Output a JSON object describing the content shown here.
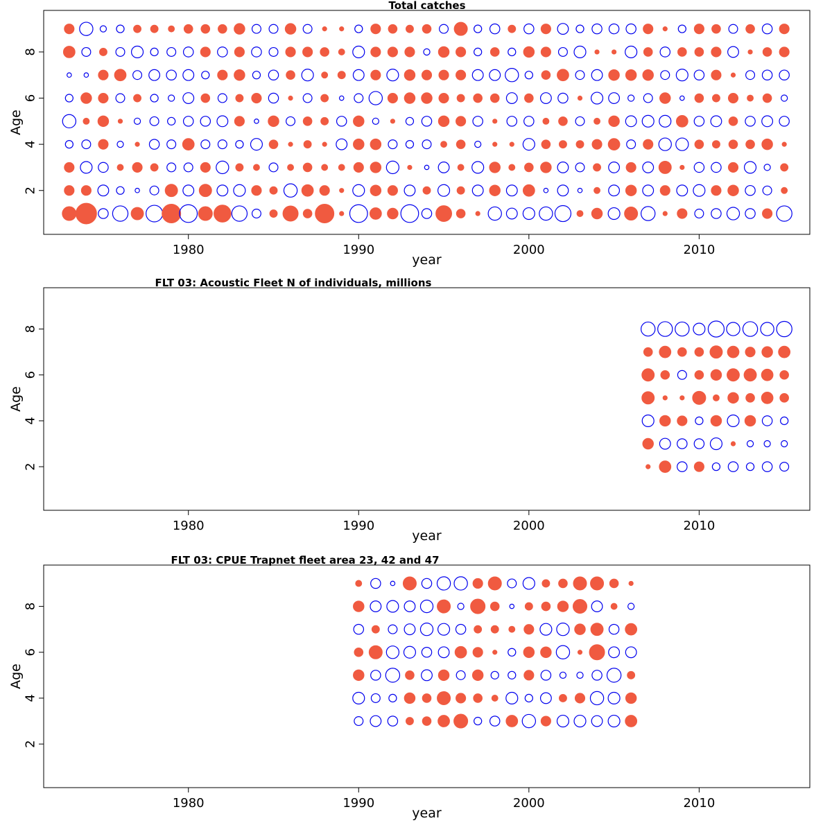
{
  "chart_data": [
    {
      "type": "scatter",
      "subtype": "bubble-residuals",
      "title": "Total catches",
      "xlabel": "year",
      "ylabel": "Age",
      "xlim": [
        1971.5,
        2016.5
      ],
      "ylim": [
        0.1,
        9.8
      ],
      "xticks": [
        1980,
        1990,
        2000,
        2010
      ],
      "yticks": [
        2,
        4,
        6,
        8
      ],
      "ages": [
        1,
        2,
        3,
        4,
        5,
        6,
        7,
        8,
        9
      ],
      "years": [
        1973,
        1974,
        1975,
        1976,
        1977,
        1978,
        1979,
        1980,
        1981,
        1982,
        1983,
        1984,
        1985,
        1986,
        1987,
        1988,
        1989,
        1990,
        1991,
        1992,
        1993,
        1994,
        1995,
        1996,
        1997,
        1998,
        1999,
        2000,
        2001,
        2002,
        2003,
        2004,
        2005,
        2006,
        2007,
        2008,
        2009,
        2010,
        2011,
        2012,
        2013,
        2014,
        2015
      ],
      "residual_range": [
        -2.5,
        2.5
      ],
      "colors": {
        "positive": "#f05a40",
        "negative": "#0000ee"
      },
      "residuals_by_age": [
        [
          1.0,
          2.2,
          -0.5,
          -1.2,
          0.8,
          -1.4,
          1.8,
          -1.6,
          1.0,
          1.5,
          -1.2,
          -0.4,
          0.3,
          1.2,
          0.4,
          1.8,
          0.1,
          -1.6,
          0.7,
          0.6,
          -1.6,
          -0.5,
          1.3,
          0.4,
          0.1,
          -0.9,
          -0.6,
          -0.7,
          -0.9,
          -1.3,
          0.2,
          0.6,
          -0.7,
          0.9,
          -1.0,
          0.1,
          0.5,
          -0.4,
          -0.5,
          -0.8,
          -0.5,
          0.5,
          -1.2
        ],
        [
          0.5,
          0.5,
          -0.6,
          -0.3,
          -0.1,
          -0.4,
          0.8,
          -0.6,
          0.8,
          -0.6,
          -0.7,
          0.5,
          0.3,
          -0.9,
          0.7,
          0.5,
          0.1,
          -0.7,
          0.6,
          0.5,
          -0.6,
          0.3,
          -0.7,
          0.3,
          -0.6,
          0.6,
          -0.6,
          0.7,
          -0.1,
          -0.6,
          -0.1,
          0.2,
          -0.6,
          0.6,
          -0.6,
          0.5,
          -0.6,
          -0.7,
          0.5,
          0.6,
          -0.5,
          -0.4,
          0.2
        ],
        [
          0.5,
          -0.7,
          -0.5,
          0.2,
          0.5,
          0.3,
          -0.4,
          -0.4,
          0.5,
          -0.8,
          0.3,
          0.2,
          -0.4,
          0.2,
          0.4,
          0.2,
          0.2,
          0.5,
          0.6,
          -0.8,
          0.1,
          -0.1,
          -0.6,
          0.2,
          -0.7,
          0.6,
          0.2,
          0.4,
          0.6,
          -0.6,
          -0.4,
          0.3,
          -0.6,
          0.5,
          -0.6,
          0.8,
          0.1,
          -0.5,
          -0.5,
          0.5,
          -0.7,
          -0.2,
          0.3
        ],
        [
          -0.3,
          -0.4,
          0.5,
          -0.2,
          0.1,
          -0.5,
          -0.4,
          0.7,
          -0.4,
          -0.4,
          -0.3,
          -0.7,
          0.4,
          0.1,
          0.3,
          0.1,
          -0.6,
          0.6,
          0.6,
          -0.4,
          -0.3,
          -0.4,
          0.2,
          0.4,
          -0.2,
          0.1,
          0.1,
          -0.7,
          0.4,
          0.3,
          0.3,
          0.5,
          0.7,
          -0.4,
          0.5,
          -0.8,
          -0.8,
          0.4,
          0.3,
          0.4,
          0.4,
          0.6,
          0.1
        ],
        [
          -0.9,
          0.2,
          0.6,
          0.1,
          -0.2,
          -0.4,
          -0.3,
          -0.5,
          -0.5,
          -0.6,
          0.5,
          -0.1,
          0.6,
          -0.4,
          0.4,
          0.3,
          -0.5,
          0.6,
          -0.2,
          0.1,
          -0.3,
          -0.5,
          0.6,
          0.5,
          -0.5,
          0.1,
          -0.5,
          -0.5,
          0.2,
          0.4,
          -0.4,
          0.2,
          0.6,
          -0.6,
          -0.7,
          -0.7,
          0.7,
          -0.5,
          -0.6,
          0.4,
          -0.5,
          -0.6,
          -0.5
        ],
        [
          -0.3,
          0.6,
          0.5,
          -0.4,
          0.3,
          -0.3,
          -0.2,
          -0.6,
          0.4,
          -0.4,
          0.3,
          0.5,
          -0.5,
          0.1,
          -0.4,
          0.3,
          -0.1,
          -0.4,
          -0.9,
          0.5,
          0.6,
          0.6,
          0.5,
          0.3,
          0.4,
          0.4,
          -0.6,
          0.4,
          -0.6,
          -0.5,
          0.1,
          -0.7,
          -0.6,
          -0.2,
          -0.4,
          0.6,
          -0.1,
          0.4,
          0.3,
          0.5,
          0.2,
          0.4,
          -0.2
        ],
        [
          -0.1,
          -0.1,
          0.5,
          0.7,
          -0.4,
          -0.6,
          -0.5,
          -0.6,
          -0.3,
          0.5,
          0.6,
          -0.3,
          -0.5,
          0.4,
          -0.7,
          0.2,
          0.3,
          -0.6,
          0.5,
          -0.7,
          0.6,
          0.5,
          0.5,
          0.5,
          -0.6,
          -0.6,
          -0.9,
          -0.3,
          0.4,
          0.7,
          -0.4,
          -0.6,
          0.6,
          0.6,
          0.6,
          -0.4,
          -0.7,
          -0.5,
          0.5,
          0.1,
          -0.4,
          -0.5,
          -0.5
        ],
        [
          0.7,
          -0.4,
          0.3,
          -0.4,
          -0.7,
          -0.3,
          -0.4,
          -0.5,
          0.5,
          -0.5,
          0.5,
          -0.5,
          -0.4,
          0.5,
          0.5,
          0.4,
          0.2,
          -0.7,
          0.5,
          0.5,
          0.5,
          -0.2,
          0.6,
          0.5,
          -0.3,
          0.4,
          -0.3,
          0.6,
          0.5,
          -0.4,
          -0.7,
          0.1,
          0.1,
          -0.7,
          0.4,
          -0.5,
          0.4,
          0.4,
          0.5,
          -0.6,
          0.1,
          0.4,
          0.5
        ],
        [
          0.5,
          -0.9,
          -0.2,
          -0.3,
          0.3,
          0.3,
          0.2,
          0.4,
          0.4,
          0.4,
          0.6,
          -0.4,
          -0.4,
          0.6,
          -0.4,
          0.1,
          0.1,
          -0.3,
          0.5,
          0.4,
          0.3,
          0.4,
          -0.4,
          0.9,
          -0.3,
          -0.5,
          0.3,
          -0.5,
          0.5,
          -0.6,
          -0.3,
          -0.5,
          -0.5,
          -0.5,
          0.5,
          0.1,
          -0.3,
          0.5,
          0.4,
          -0.4,
          0.4,
          -0.5,
          0.5
        ]
      ]
    },
    {
      "type": "scatter",
      "subtype": "bubble-residuals",
      "title": "FLT 03: Acoustic Fleet   N of individuals, millions",
      "xlabel": "year",
      "ylabel": "Age",
      "xlim": [
        1971.5,
        2016.5
      ],
      "ylim": [
        0.1,
        9.8
      ],
      "xticks": [
        1980,
        1990,
        2000,
        2010
      ],
      "yticks": [
        2,
        4,
        6,
        8
      ],
      "ages": [
        2,
        3,
        4,
        5,
        6,
        7,
        8
      ],
      "years": [
        2007,
        2008,
        2009,
        2010,
        2011,
        2012,
        2013,
        2014,
        2015
      ],
      "residual_range": [
        -2.5,
        2.5
      ],
      "colors": {
        "positive": "#f05a40",
        "negative": "#0000ee"
      },
      "residuals_by_age": [
        [
          0.1,
          0.7,
          -0.5,
          0.5,
          -0.3,
          -0.5,
          -0.3,
          -0.5,
          -0.4
        ],
        [
          0.6,
          -0.6,
          -0.5,
          -0.5,
          -0.7,
          0.1,
          -0.2,
          -0.2,
          -0.2
        ],
        [
          -0.7,
          0.6,
          0.5,
          -0.3,
          0.6,
          -0.7,
          0.6,
          -0.5,
          -0.3
        ],
        [
          0.8,
          0.1,
          0.1,
          0.9,
          0.2,
          0.6,
          0.4,
          0.7,
          0.4
        ],
        [
          0.8,
          0.4,
          -0.4,
          0.4,
          0.6,
          0.8,
          0.8,
          0.7,
          0.4
        ],
        [
          0.4,
          0.7,
          0.4,
          0.4,
          0.8,
          0.7,
          0.5,
          0.6,
          0.7
        ],
        [
          -1.0,
          -1.1,
          -1.0,
          -0.7,
          -1.3,
          -0.9,
          -1.1,
          -0.9,
          -1.2
        ]
      ]
    },
    {
      "type": "scatter",
      "subtype": "bubble-residuals",
      "title": "FLT 03: CPUE Trapnet fleet area 23, 42 and 47",
      "xlabel": "year",
      "ylabel": "Age",
      "xlim": [
        1971.5,
        2016.5
      ],
      "ylim": [
        0.1,
        9.8
      ],
      "xticks": [
        1980,
        1990,
        2000,
        2010
      ],
      "yticks": [
        2,
        4,
        6,
        8
      ],
      "ages": [
        3,
        4,
        5,
        6,
        7,
        8,
        9
      ],
      "years": [
        1990,
        1991,
        1992,
        1993,
        1994,
        1995,
        1996,
        1997,
        1998,
        1999,
        2000,
        2001,
        2002,
        2003,
        2004,
        2005,
        2006
      ],
      "residual_range": [
        -2.5,
        2.5
      ],
      "colors": {
        "positive": "#f05a40",
        "negative": "#0000ee"
      },
      "residuals_by_age": [
        [
          -0.4,
          -0.6,
          -0.5,
          0.3,
          0.4,
          0.7,
          1.0,
          -0.3,
          -0.5,
          0.7,
          -0.9,
          0.5,
          -0.7,
          -0.7,
          -0.6,
          -0.7,
          0.7
        ],
        [
          -0.7,
          -0.4,
          -0.3,
          0.6,
          0.4,
          0.9,
          0.5,
          0.4,
          0.2,
          -0.7,
          -0.3,
          -0.6,
          0.3,
          0.5,
          -0.9,
          -0.7,
          0.6
        ],
        [
          0.6,
          -0.5,
          -1.0,
          0.4,
          -0.6,
          0.6,
          -0.4,
          0.6,
          -0.3,
          -0.3,
          0.5,
          -0.5,
          -0.2,
          -0.2,
          -0.5,
          -1.0,
          0.3
        ],
        [
          0.4,
          0.9,
          -0.8,
          -0.7,
          -0.5,
          -0.6,
          0.7,
          0.5,
          0.1,
          -0.3,
          0.6,
          0.6,
          -0.9,
          0.1,
          1.2,
          -0.6,
          -0.6
        ],
        [
          -0.5,
          0.3,
          -0.4,
          -0.6,
          -0.8,
          -0.7,
          -0.5,
          0.3,
          0.3,
          0.2,
          0.5,
          -0.7,
          -0.8,
          0.6,
          0.8,
          -0.5,
          0.7
        ],
        [
          0.6,
          -0.6,
          -0.7,
          -0.6,
          -0.8,
          0.9,
          -0.2,
          1.1,
          0.4,
          -0.1,
          0.3,
          0.4,
          0.6,
          1.0,
          -0.6,
          0.2,
          -0.2
        ],
        [
          0.2,
          -0.5,
          -0.1,
          0.9,
          -0.5,
          -0.9,
          -0.9,
          0.5,
          0.9,
          -0.4,
          -0.7,
          0.3,
          0.4,
          0.9,
          0.9,
          0.4,
          0.1
        ]
      ]
    }
  ]
}
